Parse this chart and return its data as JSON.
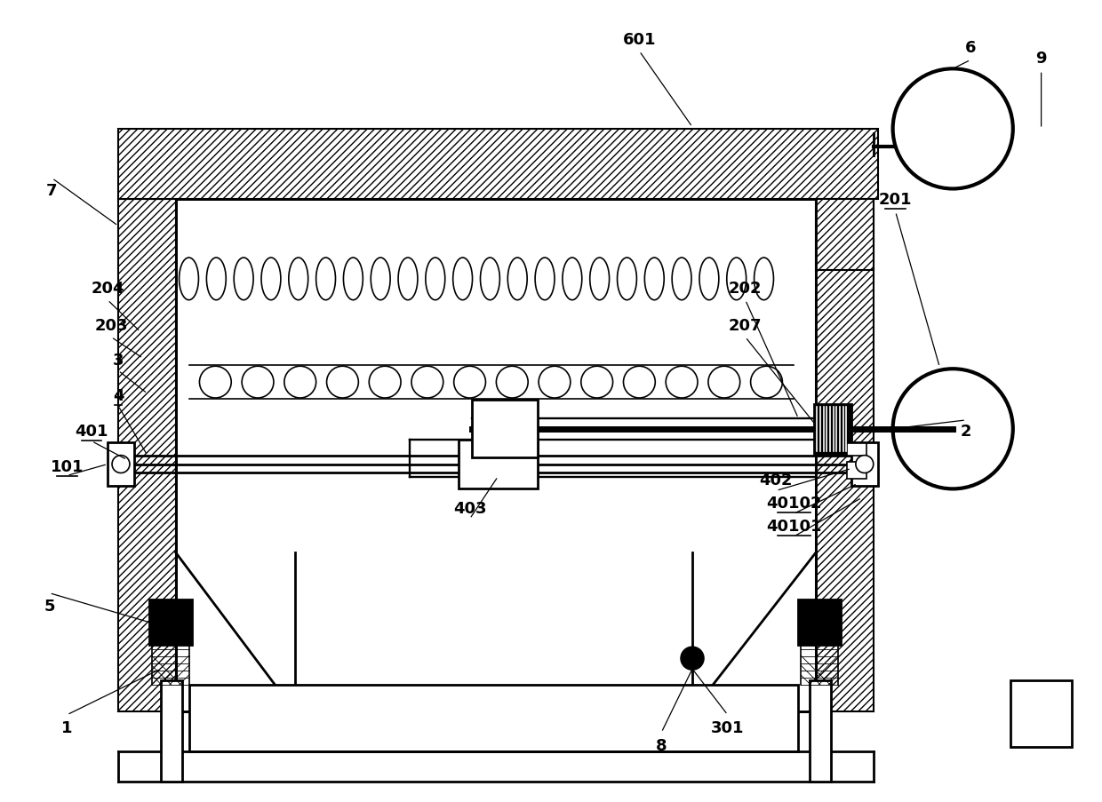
{
  "bg_color": "#ffffff",
  "line_color": "#000000",
  "fig_width": 12.4,
  "fig_height": 9.04,
  "underline_labels": [
    "201",
    "101",
    "4",
    "40101",
    "40102",
    "401"
  ]
}
